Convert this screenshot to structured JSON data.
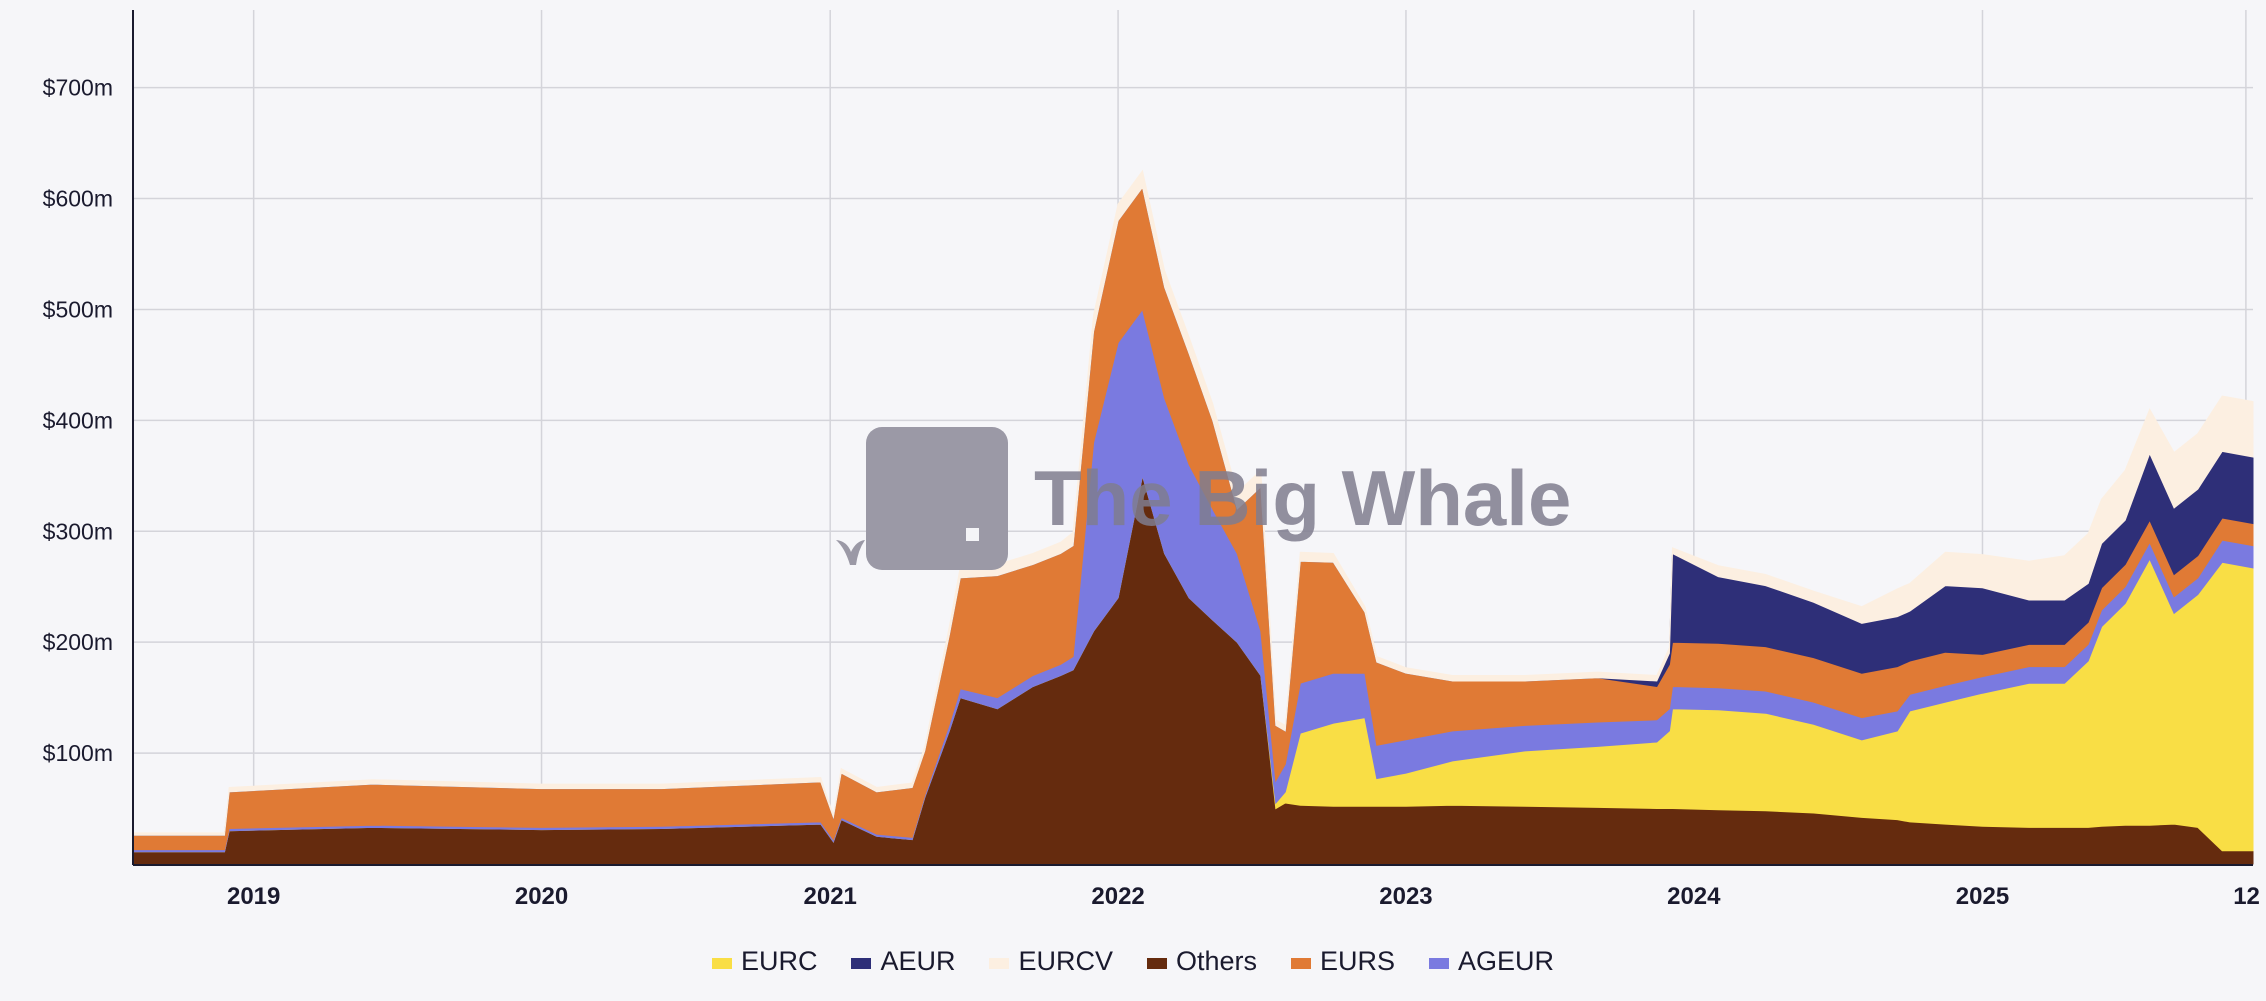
{
  "chart_data": {
    "type": "area",
    "stacked": true,
    "title": "",
    "xlabel": "",
    "ylabel": "",
    "x_ticks": [
      "2019",
      "2020",
      "2021",
      "2022",
      "2023",
      "2024",
      "2025",
      "12"
    ],
    "y_ticks": [
      "$100m",
      "$200m",
      "$300m",
      "$400m",
      "$500m",
      "$600m",
      "$700m"
    ],
    "ylim": [
      0,
      770
    ],
    "xlim": [
      "2018-08-01",
      "2025-12-10"
    ],
    "grid": true,
    "legend_position": "bottom",
    "watermark": "The Big Whale",
    "x": [
      "2018-08-01",
      "2018-11-25",
      "2018-12-01",
      "2019-06-01",
      "2020-01-01",
      "2020-06-01",
      "2020-12-20",
      "2021-01-05",
      "2021-01-15",
      "2021-03-01",
      "2021-04-15",
      "2021-05-01",
      "2021-06-01",
      "2021-06-15",
      "2021-08-01",
      "2021-09-15",
      "2021-10-20",
      "2021-11-05",
      "2021-12-01",
      "2022-01-01",
      "2022-02-01",
      "2022-03-01",
      "2022-04-01",
      "2022-05-01",
      "2022-06-01",
      "2022-07-01",
      "2022-07-20",
      "2022-08-01",
      "2022-08-20",
      "2022-10-01",
      "2022-11-10",
      "2022-11-25",
      "2023-01-01",
      "2023-03-01",
      "2023-06-01",
      "2023-09-01",
      "2023-11-15",
      "2023-12-01",
      "2023-12-05",
      "2024-02-01",
      "2024-04-01",
      "2024-06-01",
      "2024-08-01",
      "2024-09-15",
      "2024-10-01",
      "2024-11-15",
      "2025-01-01",
      "2025-03-01",
      "2025-04-15",
      "2025-05-15",
      "2025-06-01",
      "2025-07-01",
      "2025-08-01",
      "2025-09-01",
      "2025-10-01",
      "2025-11-01",
      "2025-12-10"
    ],
    "series": [
      {
        "name": "Others",
        "color": "#652b0e",
        "values": [
          11,
          11,
          30,
          33,
          31,
          32,
          36,
          20,
          40,
          25,
          22,
          60,
          120,
          150,
          140,
          160,
          170,
          175,
          210,
          240,
          350,
          280,
          240,
          220,
          200,
          170,
          50,
          55,
          53,
          52,
          52,
          52,
          52,
          53,
          52,
          51,
          50,
          50,
          50,
          49,
          48,
          46,
          42,
          40,
          38,
          36,
          34,
          33,
          33,
          33,
          34,
          35,
          35,
          36,
          33,
          12,
          12
        ]
      },
      {
        "name": "EURC",
        "color": "#f9de45",
        "values": [
          0,
          0,
          0,
          0,
          0,
          0,
          0,
          0,
          0,
          0,
          0,
          0,
          0,
          0,
          0,
          0,
          0,
          0,
          0,
          0,
          0,
          0,
          0,
          0,
          0,
          0,
          5,
          10,
          65,
          75,
          80,
          25,
          30,
          40,
          50,
          55,
          60,
          70,
          90,
          90,
          88,
          80,
          70,
          80,
          100,
          110,
          120,
          130,
          130,
          150,
          180,
          200,
          240,
          190,
          210,
          260,
          255
        ]
      },
      {
        "name": "AGEUR",
        "color": "#7a7ae0",
        "values": [
          2,
          2,
          2,
          2,
          2,
          2,
          2,
          2,
          2,
          2,
          2,
          2,
          6,
          8,
          10,
          10,
          10,
          12,
          170,
          230,
          150,
          140,
          120,
          100,
          80,
          40,
          20,
          25,
          45,
          45,
          40,
          30,
          30,
          27,
          23,
          22,
          20,
          20,
          20,
          20,
          20,
          20,
          20,
          18,
          15,
          15,
          15,
          15,
          15,
          15,
          15,
          15,
          15,
          15,
          15,
          20,
          20
        ]
      },
      {
        "name": "EURS",
        "color": "#e07a35",
        "values": [
          13,
          13,
          33,
          37,
          35,
          34,
          36,
          20,
          40,
          38,
          45,
          40,
          80,
          100,
          110,
          100,
          100,
          100,
          100,
          110,
          110,
          100,
          100,
          80,
          40,
          130,
          50,
          30,
          110,
          100,
          55,
          75,
          60,
          45,
          40,
          40,
          30,
          40,
          40,
          40,
          40,
          40,
          40,
          40,
          30,
          30,
          20,
          20,
          20,
          20,
          20,
          20,
          20,
          20,
          20,
          20,
          20
        ]
      },
      {
        "name": "AEUR",
        "color": "#2e2f78",
        "values": [
          0,
          0,
          0,
          0,
          0,
          0,
          0,
          0,
          0,
          0,
          0,
          0,
          0,
          0,
          0,
          0,
          0,
          0,
          0,
          0,
          0,
          0,
          0,
          0,
          0,
          0,
          0,
          0,
          0,
          0,
          0,
          0,
          0,
          0,
          0,
          0,
          5,
          10,
          80,
          60,
          55,
          50,
          45,
          45,
          45,
          60,
          60,
          40,
          40,
          35,
          40,
          40,
          60,
          60,
          60,
          60,
          60
        ]
      },
      {
        "name": "EURCV",
        "color": "#fcefe1",
        "values": [
          2,
          2,
          4,
          4,
          4,
          4,
          4,
          2,
          4,
          4,
          4,
          4,
          8,
          10,
          10,
          10,
          10,
          12,
          15,
          15,
          15,
          15,
          15,
          15,
          15,
          15,
          5,
          5,
          8,
          8,
          5,
          5,
          5,
          5,
          5,
          5,
          5,
          5,
          5,
          10,
          10,
          10,
          15,
          25,
          25,
          30,
          30,
          35,
          40,
          45,
          40,
          45,
          40,
          50,
          50,
          50,
          50
        ]
      }
    ]
  },
  "legend": [
    {
      "label": "EURC",
      "color": "#f9de45"
    },
    {
      "label": "AEUR",
      "color": "#2e2f78"
    },
    {
      "label": "EURCV",
      "color": "#fcefe1"
    },
    {
      "label": "Others",
      "color": "#652b0e"
    },
    {
      "label": "EURS",
      "color": "#e07a35"
    },
    {
      "label": "AGEUR",
      "color": "#7a7ae0"
    }
  ]
}
